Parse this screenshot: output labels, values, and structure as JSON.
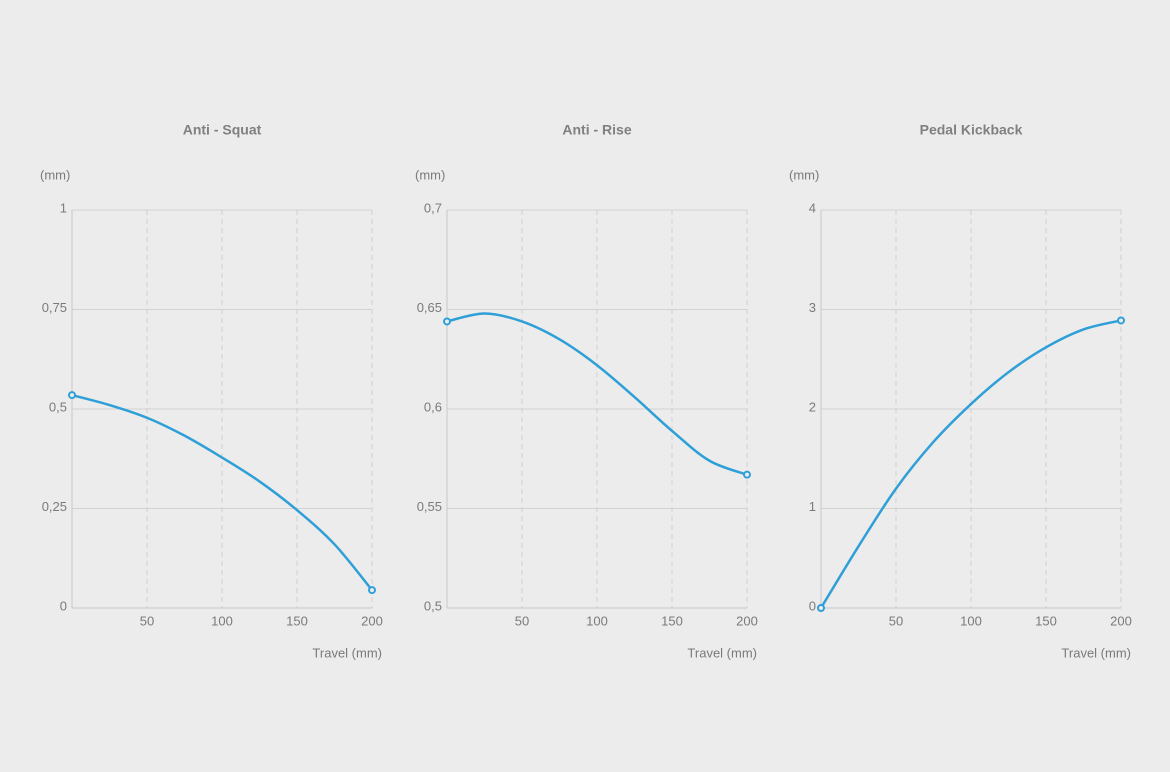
{
  "chart_data": [
    {
      "type": "line",
      "title": "Anti - Squat",
      "y_label": "(mm)",
      "x_label": "Travel (mm)",
      "x": [
        0,
        25,
        50,
        75,
        100,
        125,
        150,
        175,
        200
      ],
      "values": [
        0.535,
        0.51,
        0.478,
        0.433,
        0.378,
        0.318,
        0.246,
        0.16,
        0.045
      ],
      "color": "#2f9fd8",
      "xlim": [
        0,
        200
      ],
      "xticks": [
        50,
        100,
        150,
        200
      ],
      "ylim": [
        0,
        1
      ],
      "yticks": [
        0,
        {
          "value": 0.25,
          "label": "0,25"
        },
        {
          "value": 0.5,
          "label": "0,5"
        },
        {
          "value": 0.75,
          "label": "0,75"
        },
        1
      ],
      "grid": true
    },
    {
      "type": "line",
      "title": "Anti - Rise",
      "y_label": "(mm)",
      "x_label": "Travel (mm)",
      "x": [
        0,
        25,
        50,
        75,
        100,
        125,
        150,
        175,
        200
      ],
      "values": [
        0.644,
        0.648,
        0.644,
        0.635,
        0.622,
        0.606,
        0.589,
        0.574,
        0.567
      ],
      "color": "#2f9fd8",
      "xlim": [
        0,
        200
      ],
      "xticks": [
        50,
        100,
        150,
        200
      ],
      "ylim": [
        0.5,
        0.7
      ],
      "yticks": [
        {
          "value": 0.5,
          "label": "0,5"
        },
        {
          "value": 0.55,
          "label": "0,55"
        },
        {
          "value": 0.6,
          "label": "0,6"
        },
        {
          "value": 0.65,
          "label": "0,65"
        },
        {
          "value": 0.7,
          "label": "0,7"
        }
      ],
      "grid": true
    },
    {
      "type": "line",
      "title": "Pedal Kickback",
      "y_label": "(mm)",
      "x_label": "Travel (mm)",
      "x": [
        0,
        25,
        50,
        75,
        100,
        125,
        150,
        175,
        200
      ],
      "values": [
        0,
        0.62,
        1.2,
        1.67,
        2.05,
        2.37,
        2.62,
        2.8,
        2.89
      ],
      "color": "#2f9fd8",
      "xlim": [
        0,
        200
      ],
      "xticks": [
        50,
        100,
        150,
        200
      ],
      "ylim": [
        0,
        4
      ],
      "yticks": [
        0,
        1,
        2,
        3,
        4
      ],
      "grid": true
    }
  ]
}
